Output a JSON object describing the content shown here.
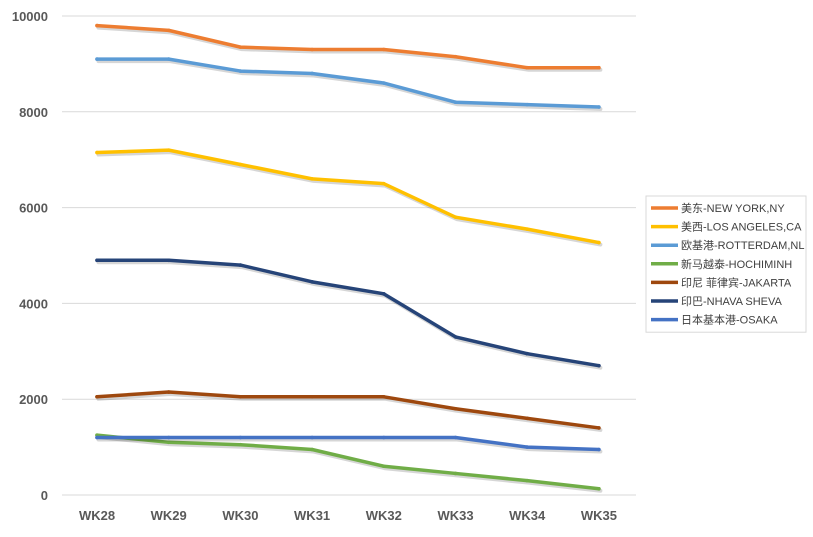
{
  "chart_data": {
    "type": "line",
    "title": "",
    "xlabel": "",
    "ylabel": "",
    "categories": [
      "WK28",
      "WK29",
      "WK30",
      "WK31",
      "WK32",
      "WK33",
      "WK34",
      "WK35"
    ],
    "ylim": [
      0,
      10000
    ],
    "yticks": [
      0,
      2000,
      4000,
      6000,
      8000,
      10000
    ],
    "grid": "horizontal",
    "legend_position": "right",
    "series": [
      {
        "name": "美东-NEW YORK,NY",
        "color": "#ED7D31",
        "values": [
          9800,
          9700,
          9350,
          9300,
          9300,
          9150,
          8920,
          8920
        ]
      },
      {
        "name": "美西-LOS ANGELES,CA",
        "color": "#FFC000",
        "values": [
          7150,
          7200,
          6900,
          6600,
          6500,
          5800,
          5550,
          5270
        ]
      },
      {
        "name": "欧基港-ROTTERDAM,NL",
        "color": "#5B9BD5",
        "values": [
          9100,
          9100,
          8850,
          8800,
          8600,
          8200,
          8150,
          8100
        ]
      },
      {
        "name": "新马越泰-HOCHIMINH",
        "color": "#70AD47",
        "values": [
          1250,
          1100,
          1050,
          950,
          600,
          450,
          300,
          130
        ]
      },
      {
        "name": "印尼 菲律宾-JAKARTA",
        "color": "#9E480E",
        "values": [
          2050,
          2150,
          2050,
          2050,
          2050,
          1800,
          1600,
          1400
        ]
      },
      {
        "name": "印巴-NHAVA SHEVA",
        "color": "#264478",
        "values": [
          4900,
          4900,
          4800,
          4450,
          4200,
          3300,
          2950,
          2700
        ]
      },
      {
        "name": "日本基本港-OSAKA",
        "color": "#4472C4",
        "values": [
          1200,
          1200,
          1200,
          1200,
          1200,
          1200,
          1000,
          950
        ]
      }
    ]
  }
}
